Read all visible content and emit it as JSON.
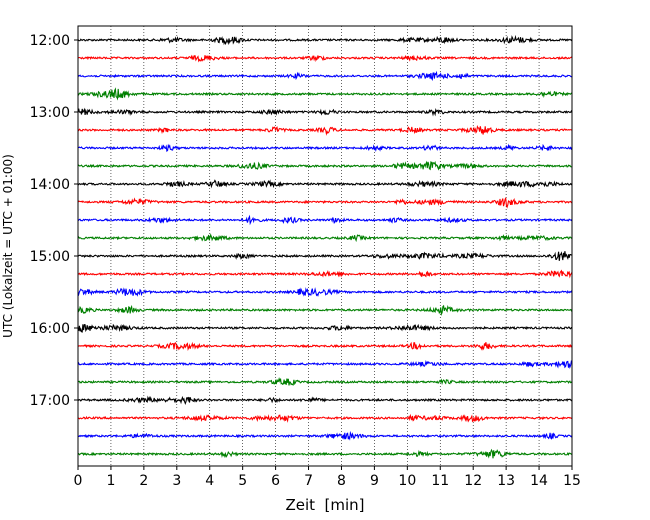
{
  "chart_data": {
    "type": "line",
    "title": "",
    "xlabel": "Zeit  [min]",
    "ylabel": "UTC (Lokalzeit = UTC + 01:00)",
    "xlim": [
      0,
      15
    ],
    "x_ticks": [
      "0",
      "1",
      "2",
      "3",
      "4",
      "5",
      "6",
      "7",
      "8",
      "9",
      "10",
      "11",
      "12",
      "13",
      "14",
      "15"
    ],
    "y_ticks": [
      "12:00",
      "13:00",
      "14:00",
      "15:00",
      "16:00",
      "17:00"
    ],
    "row_start_times": [
      "12:00",
      "12:15",
      "12:30",
      "12:45",
      "13:00",
      "13:15",
      "13:30",
      "13:45",
      "14:00",
      "14:15",
      "14:30",
      "14:45",
      "15:00",
      "15:15",
      "15:30",
      "15:45",
      "16:00",
      "16:15",
      "16:30",
      "16:45",
      "17:00",
      "17:15",
      "17:30",
      "17:45"
    ],
    "row_minutes": 15,
    "trace_colors": [
      "#000000",
      "#ff0000",
      "#0000ff",
      "#008000"
    ],
    "grid": "vertical dotted at each minute",
    "legend": "none"
  }
}
